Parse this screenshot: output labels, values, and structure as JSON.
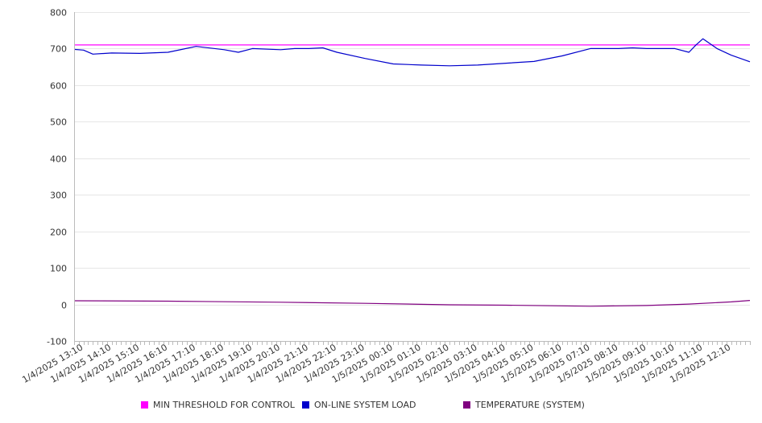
{
  "chart_data": {
    "type": "line",
    "title": "",
    "xlabel": "",
    "ylabel": "",
    "ylim": [
      -100,
      800
    ],
    "y_ticks": [
      800,
      700,
      600,
      500,
      400,
      300,
      200,
      100,
      0,
      -100
    ],
    "x_range": [
      "1/4/2025 12:50",
      "1/5/2025 12:50"
    ],
    "x_tick_labels": [
      "1/4/2025 13:10",
      "1/4/2025 14:10",
      "1/4/2025 15:10",
      "1/4/2025 16:10",
      "1/4/2025 17:10",
      "1/4/2025 18:10",
      "1/4/2025 19:10",
      "1/4/2025 20:10",
      "1/4/2025 21:10",
      "1/4/2025 22:10",
      "1/4/2025 23:10",
      "1/5/2025 00:10",
      "1/5/2025 01:10",
      "1/5/2025 02:10",
      "1/5/2025 03:10",
      "1/5/2025 04:10",
      "1/5/2025 05:10",
      "1/5/2025 06:10",
      "1/5/2025 07:10",
      "1/5/2025 08:10",
      "1/5/2025 09:10",
      "1/5/2025 10:10",
      "1/5/2025 11:10",
      "1/5/2025 12:10"
    ],
    "grid": "horizontal",
    "legend_position": "bottom",
    "series": [
      {
        "name": "MIN THRESHOLD FOR CONTROL",
        "color": "#ff00ff",
        "x": [
          "1/4/2025 12:50",
          "1/5/2025 12:50"
        ],
        "values": [
          710,
          710
        ]
      },
      {
        "name": "ON-LINE SYSTEM LOAD",
        "color": "#0000cc",
        "x": [
          "1/4/2025 12:50",
          "1/4/2025 13:10",
          "1/4/2025 13:30",
          "1/4/2025 14:10",
          "1/4/2025 15:10",
          "1/4/2025 16:10",
          "1/4/2025 16:40",
          "1/4/2025 17:10",
          "1/4/2025 18:10",
          "1/4/2025 18:40",
          "1/4/2025 19:10",
          "1/4/2025 20:10",
          "1/4/2025 20:40",
          "1/4/2025 21:10",
          "1/4/2025 21:40",
          "1/4/2025 22:10",
          "1/4/2025 23:10",
          "1/5/2025 00:10",
          "1/5/2025 01:10",
          "1/5/2025 02:10",
          "1/5/2025 03:10",
          "1/5/2025 04:10",
          "1/5/2025 05:10",
          "1/5/2025 06:10",
          "1/5/2025 07:10",
          "1/5/2025 08:10",
          "1/5/2025 08:40",
          "1/5/2025 09:10",
          "1/5/2025 10:10",
          "1/5/2025 10:40",
          "1/5/2025 10:55",
          "1/5/2025 11:10",
          "1/5/2025 11:40",
          "1/5/2025 12:10",
          "1/5/2025 12:50"
        ],
        "values": [
          698,
          696,
          685,
          688,
          687,
          690,
          698,
          706,
          697,
          690,
          700,
          697,
          700,
          700,
          702,
          690,
          673,
          658,
          655,
          653,
          655,
          660,
          665,
          680,
          700,
          700,
          702,
          700,
          700,
          690,
          710,
          727,
          700,
          682,
          664
        ]
      },
      {
        "name": "TEMPERATURE (SYSTEM)",
        "color": "#800080",
        "x": [
          "1/4/2025 12:50",
          "1/4/2025 16:10",
          "1/4/2025 20:10",
          "1/4/2025 23:10",
          "1/5/2025 02:10",
          "1/5/2025 04:10",
          "1/5/2025 07:10",
          "1/5/2025 09:10",
          "1/5/2025 10:40",
          "1/5/2025 12:10",
          "1/5/2025 12:50"
        ],
        "values": [
          10,
          9,
          6,
          3,
          -1,
          -2,
          -5,
          -3,
          1,
          7,
          11
        ]
      }
    ]
  }
}
